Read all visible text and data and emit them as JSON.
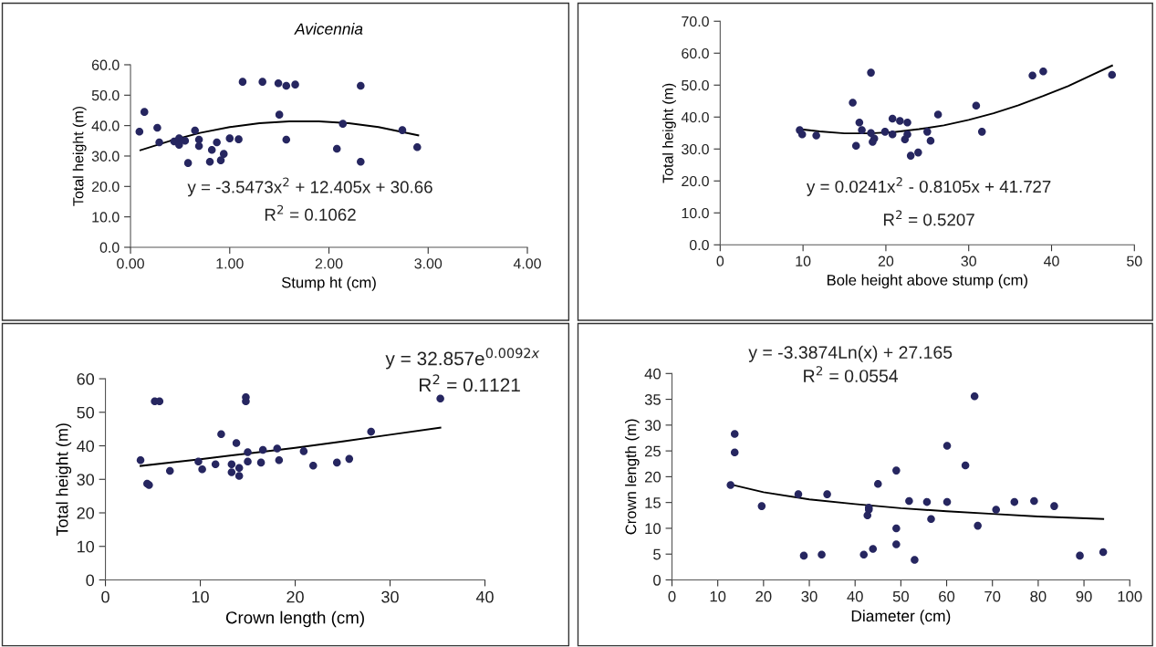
{
  "chart_data": [
    {
      "type": "scatter",
      "title": "Avicennia",
      "xlabel": "Stump ht (cm)",
      "ylabel": "Total height (m)",
      "xlim": [
        0,
        4
      ],
      "xticks": [
        {
          "value": 0,
          "label": "0.00"
        },
        {
          "value": 1,
          "label": "1.00"
        },
        {
          "value": 2,
          "label": "2.00"
        },
        {
          "value": 3,
          "label": "3.00"
        },
        {
          "value": 4,
          "label": "4.00"
        }
      ],
      "ylim": [
        0,
        60
      ],
      "yticks": [
        {
          "value": 0,
          "label": "0.0"
        },
        {
          "value": 10,
          "label": "10.0"
        },
        {
          "value": 20,
          "label": "20.0"
        },
        {
          "value": 30,
          "label": "30.0"
        },
        {
          "value": 40,
          "label": "40.0"
        },
        {
          "value": 50,
          "label": "50.0"
        },
        {
          "value": 60,
          "label": "60.0"
        }
      ],
      "annotations": [
        "y = -3.5473x$^{2}$ + 12.405x + 30.66",
        "R$^{2}$ = 0.1062"
      ],
      "series": [
        {
          "type": "scatter",
          "marker": "circle",
          "color": "#262660",
          "x": [
            0.09,
            0.14,
            0.27,
            0.29,
            0.44,
            0.49,
            0.49,
            0.55,
            0.58,
            0.65,
            0.69,
            0.69,
            0.82,
            0.8,
            0.87,
            0.91,
            0.94,
            1.0,
            1.09,
            1.13,
            1.33,
            1.49,
            1.5,
            1.57,
            1.57,
            1.66,
            2.08,
            2.14,
            2.32,
            2.32,
            2.74,
            2.89
          ],
          "values": [
            38.0,
            44.5,
            39.3,
            34.5,
            34.8,
            35.8,
            33.7,
            35.0,
            27.7,
            38.4,
            35.4,
            33.3,
            32.0,
            28.1,
            34.5,
            28.6,
            30.7,
            35.8,
            35.5,
            54.4,
            54.4,
            53.9,
            43.6,
            53.1,
            35.4,
            53.5,
            32.4,
            40.6,
            53.1,
            28.1,
            38.5,
            32.9
          ]
        },
        {
          "type": "line",
          "marker": "none",
          "color": "#000000",
          "x": [
            0.1,
            0.4,
            0.7,
            1.0,
            1.3,
            1.6,
            1.9,
            2.2,
            2.5,
            2.9
          ],
          "values": [
            31.9,
            35.0,
            37.6,
            39.5,
            40.8,
            41.4,
            41.4,
            40.8,
            39.5,
            36.8
          ]
        }
      ]
    },
    {
      "type": "scatter",
      "xlabel": "Bole height above stump (cm)",
      "ylabel": "Total height (m)",
      "xlim": [
        0,
        50
      ],
      "xticks": [
        0,
        10,
        20,
        30,
        40,
        50
      ],
      "ylim": [
        0,
        70
      ],
      "yticks": [
        {
          "value": 0,
          "label": "0.0"
        },
        {
          "value": 10,
          "label": "10.0"
        },
        {
          "value": 20,
          "label": "20.0"
        },
        {
          "value": 30,
          "label": "30.0"
        },
        {
          "value": 40,
          "label": "40.0"
        },
        {
          "value": 50,
          "label": "50.0"
        },
        {
          "value": 60,
          "label": "60.0"
        },
        {
          "value": 70,
          "label": "70.0"
        }
      ],
      "annotations": [
        "y = 0.0241x$^{2}$ - 0.8105x + 41.727",
        "R$^{2}$ = 0.5207"
      ],
      "series": [
        {
          "type": "scatter",
          "marker": "circle",
          "color": "#262660",
          "x": [
            9.6,
            9.9,
            11.6,
            16.0,
            16.4,
            16.8,
            17.1,
            18.2,
            18.2,
            18.6,
            18.4,
            19.9,
            20.8,
            20.8,
            21.7,
            22.6,
            22.6,
            22.3,
            23.0,
            23.9,
            25.0,
            25.4,
            26.3,
            30.9,
            31.6,
            37.7,
            39.0,
            47.3
          ],
          "values": [
            35.9,
            34.6,
            34.2,
            44.5,
            31.0,
            38.3,
            35.9,
            53.9,
            35.0,
            33.3,
            32.2,
            35.4,
            39.5,
            34.6,
            38.8,
            38.3,
            34.6,
            33.0,
            27.9,
            28.9,
            35.4,
            32.6,
            40.8,
            43.6,
            35.4,
            53.0,
            54.3,
            53.2
          ]
        },
        {
          "type": "line",
          "marker": "none",
          "color": "#000000",
          "x": [
            9.6,
            12,
            15,
            18,
            21,
            24,
            27,
            30,
            33,
            36,
            39,
            42,
            45,
            47.3
          ],
          "values": [
            36.2,
            35.5,
            34.9,
            34.9,
            35.3,
            36.2,
            37.4,
            39.1,
            41.2,
            43.7,
            46.6,
            49.7,
            53.3,
            56.1
          ]
        }
      ]
    },
    {
      "type": "scatter",
      "xlabel": "Crown length (cm)",
      "ylabel": "Total height (m)",
      "xlim": [
        0,
        40
      ],
      "xticks": [
        0,
        10,
        20,
        30,
        40
      ],
      "ylim": [
        0,
        60
      ],
      "yticks": [
        0,
        10,
        20,
        30,
        40,
        50,
        60
      ],
      "annotations": [
        "y = 32.857e$^{0.0092x}$",
        "R$^{2}$ = 0.1121"
      ],
      "series": [
        {
          "type": "scatter",
          "marker": "circle",
          "color": "#262660",
          "x": [
            3.7,
            4.4,
            4.6,
            5.2,
            5.7,
            6.8,
            9.8,
            10.2,
            11.6,
            12.2,
            13.3,
            13.3,
            13.8,
            14.1,
            14.1,
            14.8,
            14.8,
            15.0,
            15.0,
            16.4,
            16.6,
            18.1,
            18.3,
            20.9,
            21.9,
            24.4,
            25.7,
            28.0,
            35.3
          ],
          "values": [
            35.7,
            28.7,
            28.3,
            53.3,
            53.3,
            32.5,
            35.3,
            33.0,
            34.5,
            43.5,
            34.5,
            32.1,
            40.8,
            33.4,
            31.0,
            54.5,
            53.3,
            38.1,
            35.3,
            35.0,
            38.8,
            39.2,
            35.7,
            38.4,
            34.1,
            35.0,
            36.1,
            44.2,
            54.1
          ]
        },
        {
          "type": "line",
          "marker": "none",
          "color": "#000000",
          "x": [
            3.7,
            10,
            15,
            20,
            25,
            30,
            35.3
          ],
          "values": [
            34.0,
            36.0,
            37.7,
            39.4,
            41.3,
            43.3,
            45.4
          ]
        }
      ]
    },
    {
      "type": "scatter",
      "xlabel": "Diameter (cm)",
      "ylabel": "Crown length (m)",
      "xlim": [
        0,
        100
      ],
      "xticks": [
        0,
        10,
        20,
        30,
        40,
        50,
        60,
        70,
        80,
        90,
        100
      ],
      "ylim": [
        0,
        40
      ],
      "yticks": [
        0,
        5,
        10,
        15,
        20,
        25,
        30,
        35,
        40
      ],
      "annotations": [
        "y = -3.3874Ln(x) + 27.165",
        "R$^{2}$ = 0.0554"
      ],
      "series": [
        {
          "type": "scatter",
          "marker": "circle",
          "color": "#262660",
          "x": [
            12.8,
            13.7,
            13.7,
            19.6,
            27.6,
            28.8,
            32.7,
            33.9,
            41.9,
            42.7,
            43.0,
            43.0,
            43.9,
            45.0,
            49.0,
            49.0,
            49.0,
            51.8,
            53.0,
            55.7,
            56.6,
            60.1,
            60.1,
            64.1,
            66.1,
            66.8,
            70.8,
            74.8,
            79.1,
            83.5,
            89.1,
            94.2
          ],
          "values": [
            18.4,
            28.3,
            24.7,
            14.3,
            16.6,
            4.7,
            4.9,
            16.6,
            4.9,
            12.5,
            13.6,
            14.0,
            6.0,
            18.6,
            21.2,
            10.0,
            6.9,
            15.3,
            3.9,
            15.1,
            11.8,
            26.0,
            15.1,
            22.2,
            35.6,
            10.5,
            13.6,
            15.1,
            15.3,
            14.3,
            4.7,
            5.4
          ]
        },
        {
          "type": "line",
          "marker": "none",
          "color": "#000000",
          "x": [
            12.8,
            20,
            30,
            40,
            50,
            60,
            70,
            80,
            94.2
          ],
          "values": [
            18.5,
            17.0,
            15.6,
            14.7,
            13.9,
            13.3,
            12.8,
            12.3,
            11.8
          ]
        }
      ]
    }
  ]
}
